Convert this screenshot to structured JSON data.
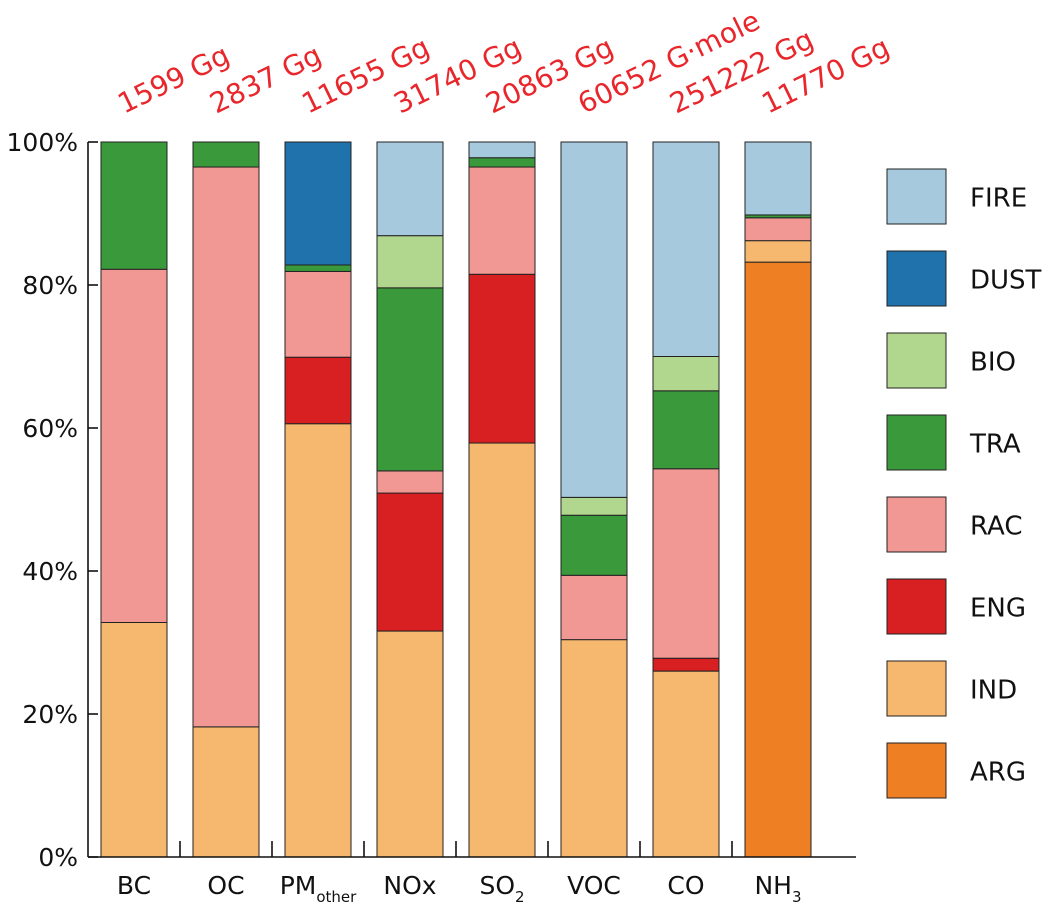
{
  "chart_data": {
    "type": "bar",
    "stacked": true,
    "orientation": "vertical",
    "categories": [
      "BC",
      "OC",
      "PM",
      "NOx",
      "SO",
      "VOC",
      "CO",
      "NH"
    ],
    "category_subscripts": [
      "",
      "",
      "other",
      "",
      "2",
      "",
      "",
      "3"
    ],
    "totals": [
      "1599 Gg",
      "2837 Gg",
      "11655 Gg",
      "31740 Gg",
      "20863 Gg",
      "60652 G·mole",
      "251222 Gg",
      "11770 Gg"
    ],
    "ylim": [
      0,
      100
    ],
    "yticks": [
      "0%",
      "20%",
      "40%",
      "60%",
      "80%",
      "100%"
    ],
    "ytick_values": [
      0,
      20,
      40,
      60,
      80,
      100
    ],
    "legend_position": "right",
    "grid": false,
    "series": [
      {
        "name": "ARG",
        "color": "#ee7f22",
        "values": [
          0,
          0,
          0,
          0,
          0,
          0,
          0,
          83.2
        ]
      },
      {
        "name": "IND",
        "color": "#f5b86e",
        "values": [
          32.8,
          18.2,
          60.6,
          31.6,
          57.9,
          30.4,
          26.0,
          3.0
        ]
      },
      {
        "name": "ENG",
        "color": "#d81f22",
        "values": [
          0,
          0,
          9.3,
          19.3,
          23.6,
          0,
          1.8,
          0
        ]
      },
      {
        "name": "RAC",
        "color": "#f29894",
        "values": [
          49.4,
          78.3,
          12.0,
          3.1,
          15.0,
          9.0,
          26.5,
          3.2
        ]
      },
      {
        "name": "TRA",
        "color": "#3a993b",
        "values": [
          17.8,
          3.5,
          0.9,
          25.6,
          1.3,
          8.4,
          10.9,
          0.4
        ]
      },
      {
        "name": "BIO",
        "color": "#b1d68d",
        "values": [
          0,
          0,
          0,
          7.3,
          0,
          2.5,
          4.8,
          0
        ]
      },
      {
        "name": "DUST",
        "color": "#1f72ab",
        "values": [
          0,
          0,
          17.2,
          0,
          0,
          0,
          0,
          0
        ]
      },
      {
        "name": "FIRE",
        "color": "#a6c9dd",
        "values": [
          0,
          0,
          0,
          13.1,
          2.2,
          49.7,
          30.0,
          10.2
        ]
      }
    ]
  }
}
